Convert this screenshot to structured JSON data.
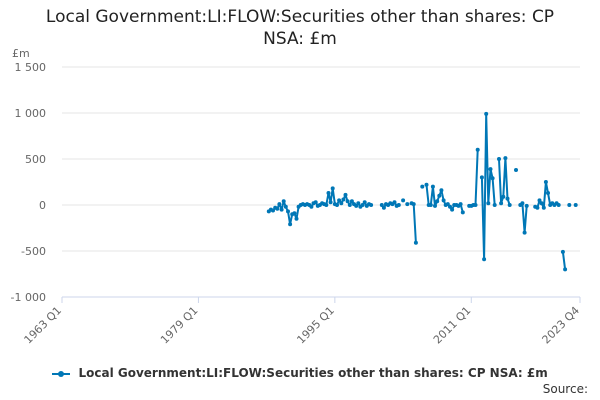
{
  "chart_data": {
    "type": "line",
    "title_lines": [
      "Local Government:LI:FLOW:Securities other than shares: CP",
      "NSA: £m"
    ],
    "unit_label": "£m",
    "ylim": [
      -1000,
      1500
    ],
    "y_ticks": [
      -1000,
      -500,
      0,
      500,
      1000,
      1500
    ],
    "y_tick_labels": [
      "-1 000",
      "-500",
      "0",
      "500",
      "1 000",
      "1 500"
    ],
    "x_range": [
      "1963 Q1",
      "2023 Q4"
    ],
    "x_ticks": [
      "1963 Q1",
      "1979 Q1",
      "1995 Q1",
      "2011 Q1",
      "2023 Q4"
    ],
    "grid": true,
    "legend_position": "bottom",
    "series": [
      {
        "name": "Local Government:LI:FLOW:Securities other than shares: CP NSA: £m",
        "color": "#0077b6",
        "points": [
          [
            "1987 Q2",
            -70
          ],
          [
            "1987 Q3",
            -50
          ],
          [
            "1987 Q4",
            -60
          ],
          [
            "1988 Q1",
            -30
          ],
          [
            "1988 Q2",
            -40
          ],
          [
            "1988 Q3",
            10
          ],
          [
            "1988 Q4",
            -50
          ],
          [
            "1989 Q1",
            40
          ],
          [
            "1989 Q2",
            -20
          ],
          [
            "1989 Q3",
            -70
          ],
          [
            "1989 Q4",
            -210
          ],
          [
            "1990 Q1",
            -100
          ],
          [
            "1990 Q2",
            -90
          ],
          [
            "1990 Q3",
            -150
          ],
          [
            "1990 Q4",
            -20
          ],
          [
            "1991 Q1",
            0
          ],
          [
            "1991 Q2",
            10
          ],
          [
            "1991 Q3",
            0
          ],
          [
            "1991 Q4",
            10
          ],
          [
            "1992 Q1",
            0
          ],
          [
            "1992 Q2",
            -20
          ],
          [
            "1992 Q3",
            20
          ],
          [
            "1992 Q4",
            30
          ],
          [
            "1993 Q1",
            -10
          ],
          [
            "1993 Q2",
            0
          ],
          [
            "1993 Q3",
            20
          ],
          [
            "1993 Q4",
            10
          ],
          [
            "1994 Q1",
            0
          ],
          [
            "1994 Q2",
            130
          ],
          [
            "1994 Q3",
            30
          ],
          [
            "1994 Q4",
            180
          ],
          [
            "1995 Q1",
            10
          ],
          [
            "1995 Q2",
            0
          ],
          [
            "1995 Q3",
            50
          ],
          [
            "1995 Q4",
            20
          ],
          [
            "1996 Q1",
            60
          ],
          [
            "1996 Q2",
            110
          ],
          [
            "1996 Q3",
            40
          ],
          [
            "1996 Q4",
            0
          ],
          [
            "1997 Q1",
            40
          ],
          [
            "1997 Q2",
            10
          ],
          [
            "1997 Q3",
            -10
          ],
          [
            "1997 Q4",
            20
          ],
          [
            "1998 Q1",
            -20
          ],
          [
            "1998 Q2",
            0
          ],
          [
            "1998 Q3",
            30
          ],
          [
            "1998 Q4",
            -10
          ],
          [
            "1999 Q1",
            10
          ],
          [
            "1999 Q2",
            0
          ],
          [
            "2000 Q3",
            0
          ],
          [
            "2000 Q4",
            -30
          ],
          [
            "2001 Q1",
            10
          ],
          [
            "2001 Q2",
            0
          ],
          [
            "2001 Q3",
            20
          ],
          [
            "2001 Q4",
            10
          ],
          [
            "2002 Q1",
            30
          ],
          [
            "2002 Q2",
            -10
          ],
          [
            "2002 Q3",
            0
          ],
          [
            "2003 Q1",
            50
          ],
          [
            "2003 Q3",
            10
          ],
          [
            "2004 Q1",
            20
          ],
          [
            "2004 Q2",
            10
          ],
          [
            "2004 Q3",
            -410
          ],
          [
            "2005 Q2",
            200
          ],
          [
            "2005 Q4",
            220
          ],
          [
            "2006 Q1",
            0
          ],
          [
            "2006 Q2",
            0
          ],
          [
            "2006 Q3",
            200
          ],
          [
            "2006 Q4",
            -10
          ],
          [
            "2007 Q1",
            40
          ],
          [
            "2007 Q2",
            100
          ],
          [
            "2007 Q3",
            160
          ],
          [
            "2007 Q4",
            50
          ],
          [
            "2008 Q1",
            0
          ],
          [
            "2008 Q2",
            10
          ],
          [
            "2008 Q3",
            -20
          ],
          [
            "2008 Q4",
            -50
          ],
          [
            "2009 Q1",
            0
          ],
          [
            "2009 Q2",
            0
          ],
          [
            "2009 Q3",
            -10
          ],
          [
            "2009 Q4",
            10
          ],
          [
            "2010 Q1",
            -80
          ],
          [
            "2010 Q4",
            -10
          ],
          [
            "2011 Q1",
            -10
          ],
          [
            "2011 Q2",
            0
          ],
          [
            "2011 Q3",
            0
          ],
          [
            "2011 Q4",
            600
          ],
          [
            "2012 Q2",
            300
          ],
          [
            "2012 Q3",
            -590
          ],
          [
            "2012 Q4",
            990
          ],
          [
            "2013 Q1",
            20
          ],
          [
            "2013 Q2",
            390
          ],
          [
            "2013 Q3",
            290
          ],
          [
            "2013 Q4",
            0
          ],
          [
            "2014 Q2",
            500
          ],
          [
            "2014 Q3",
            20
          ],
          [
            "2014 Q4",
            90
          ],
          [
            "2015 Q1",
            510
          ],
          [
            "2015 Q2",
            70
          ],
          [
            "2015 Q3",
            0
          ],
          [
            "2016 Q2",
            380
          ],
          [
            "2016 Q4",
            0
          ],
          [
            "2017 Q1",
            20
          ],
          [
            "2017 Q2",
            -300
          ],
          [
            "2017 Q3",
            -10
          ],
          [
            "2018 Q3",
            -20
          ],
          [
            "2018 Q4",
            -30
          ],
          [
            "2019 Q1",
            50
          ],
          [
            "2019 Q2",
            20
          ],
          [
            "2019 Q3",
            -30
          ],
          [
            "2019 Q4",
            250
          ],
          [
            "2020 Q1",
            130
          ],
          [
            "2020 Q2",
            0
          ],
          [
            "2020 Q3",
            20
          ],
          [
            "2020 Q4",
            0
          ],
          [
            "2021 Q1",
            20
          ],
          [
            "2021 Q2",
            0
          ],
          [
            "2021 Q4",
            -510
          ],
          [
            "2022 Q1",
            -700
          ],
          [
            "2022 Q3",
            0
          ],
          [
            "2023 Q2",
            0
          ]
        ]
      }
    ]
  },
  "legend": {
    "label": "Local Government:LI:FLOW:Securities other than shares: CP NSA: £m"
  },
  "source": {
    "label": "Source:"
  }
}
